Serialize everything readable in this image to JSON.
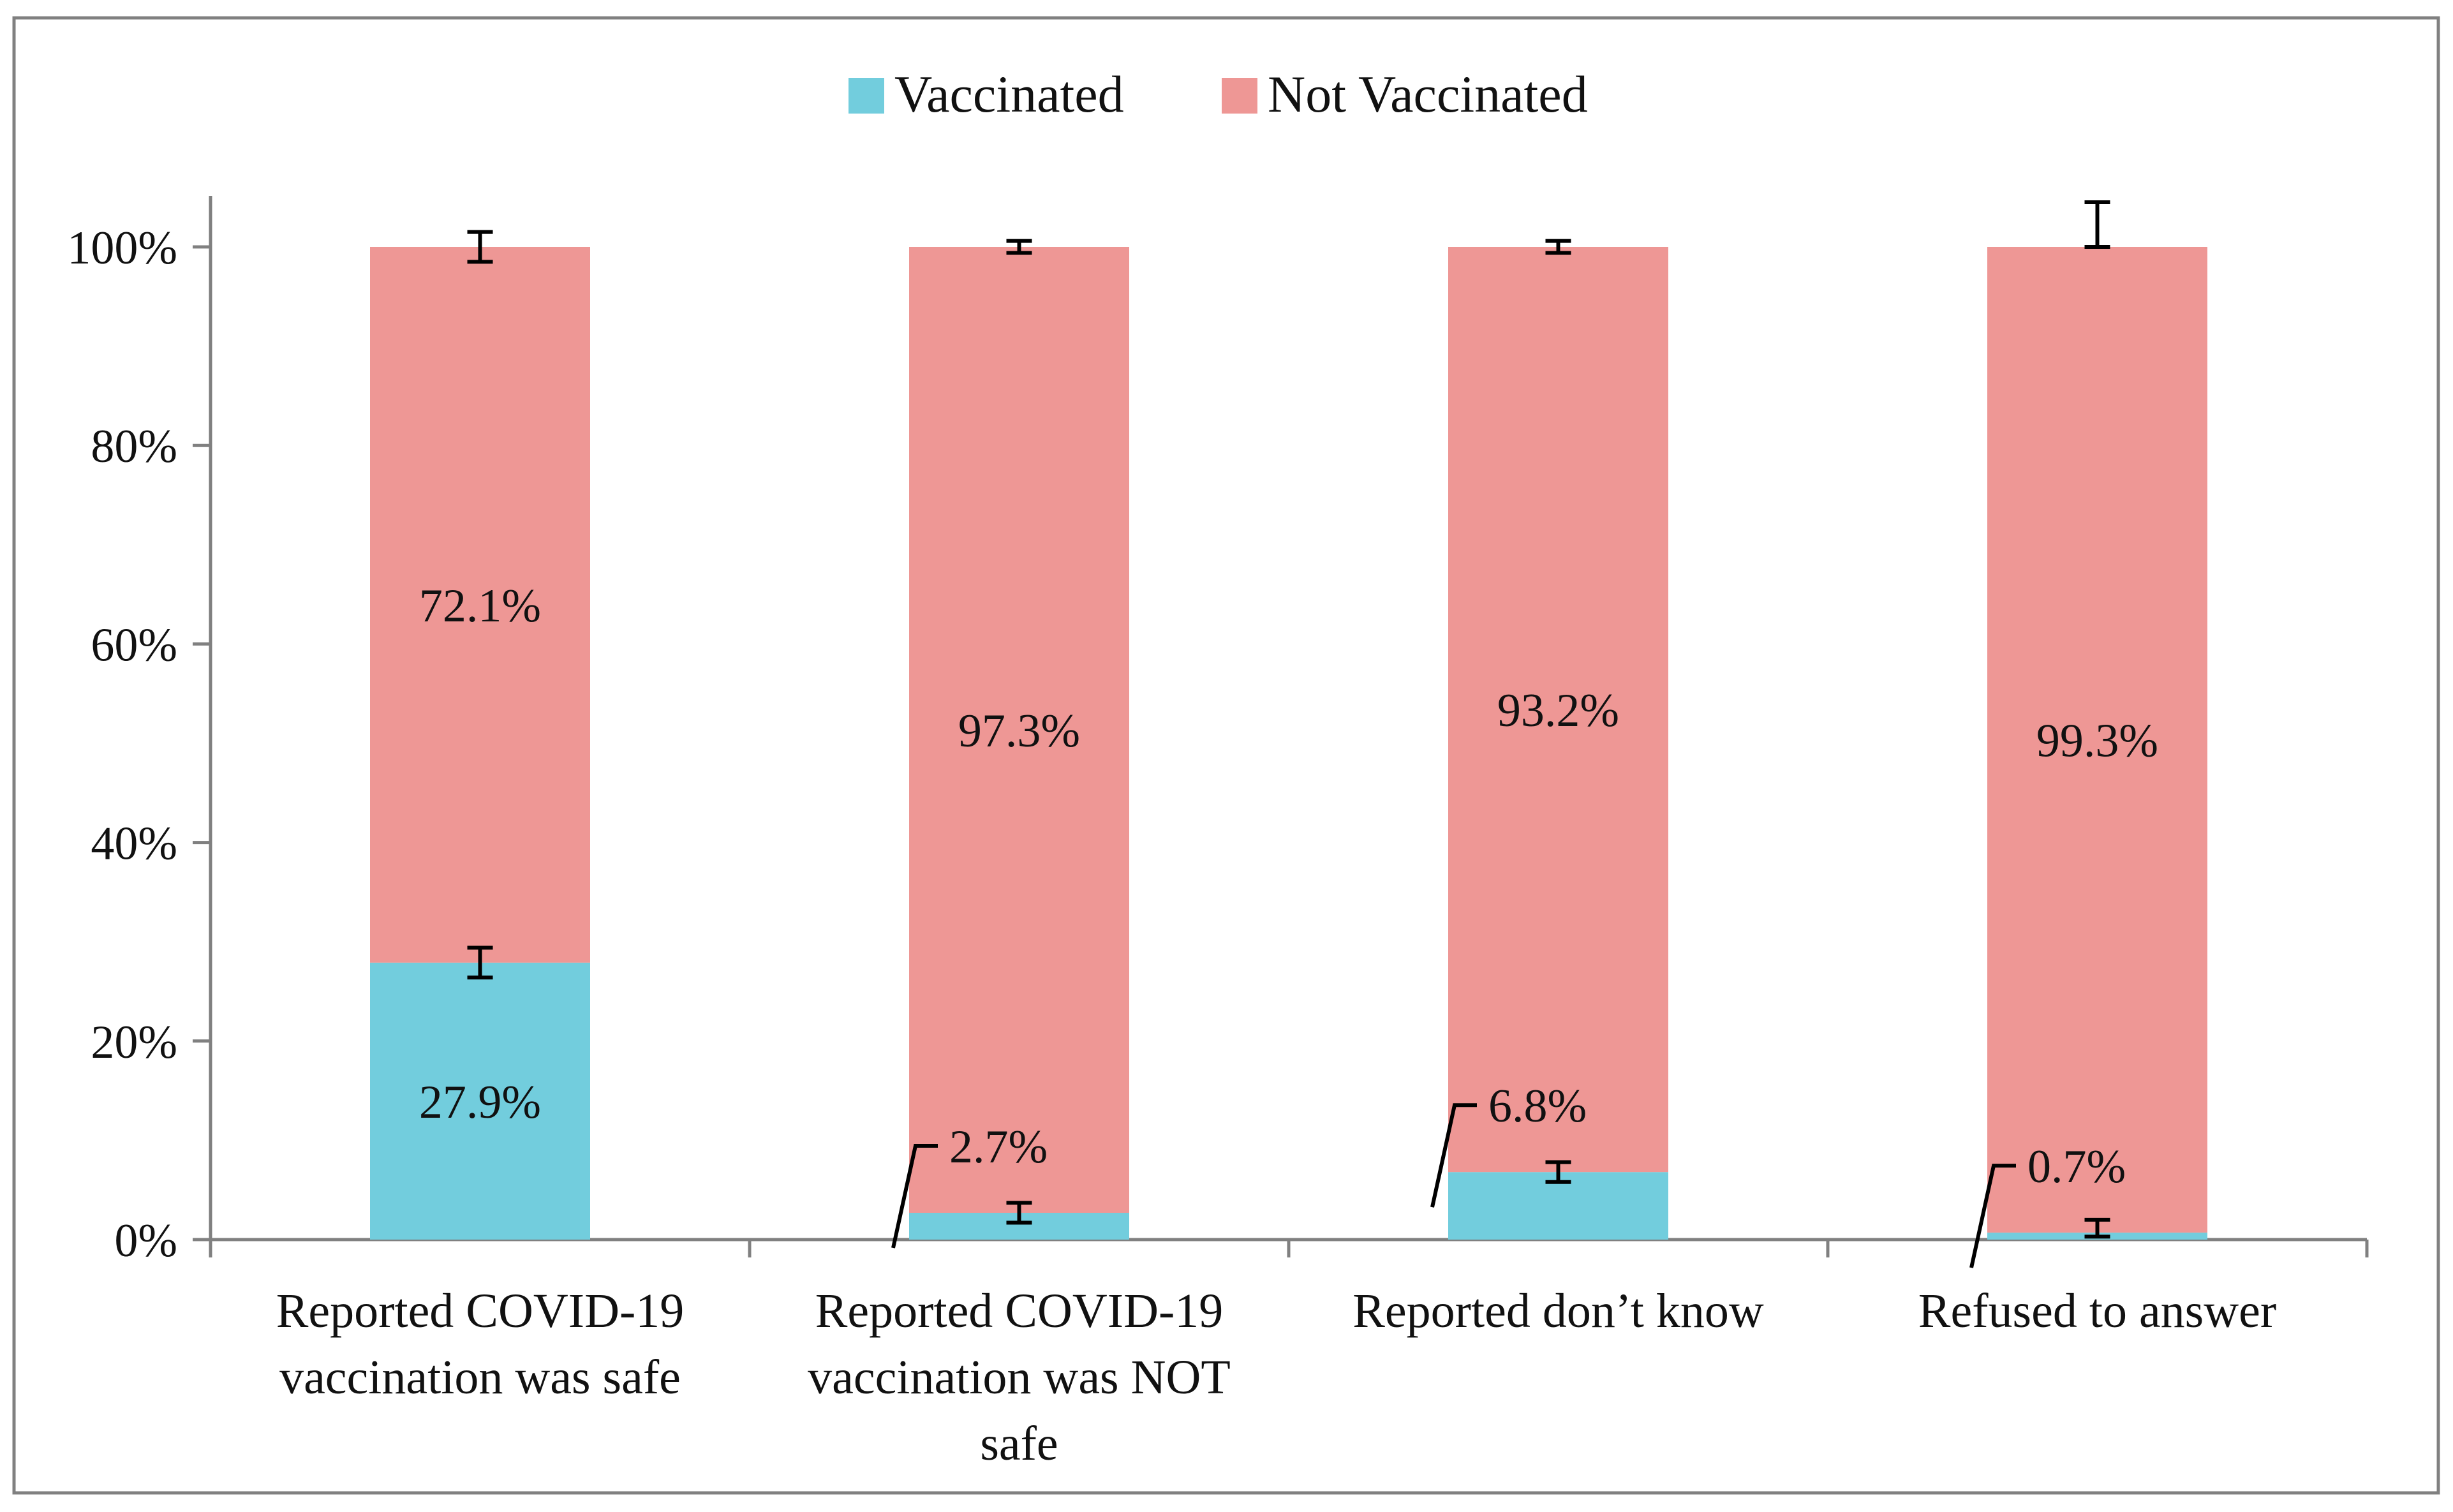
{
  "colors": {
    "vaccinated": "#72CDDD",
    "not_vaccinated": "#EE9795",
    "frame": "#808080",
    "axis": "#808080"
  },
  "chart_data": {
    "type": "bar",
    "stacked": true,
    "title": "",
    "xlabel": "",
    "ylabel": "",
    "ylim": [
      0,
      100
    ],
    "yticks": [
      0,
      20,
      40,
      60,
      80,
      100
    ],
    "ytick_labels": [
      "0%",
      "20%",
      "40%",
      "60%",
      "80%",
      "100%"
    ],
    "legend_position": "top-center",
    "grid": false,
    "categories": [
      [
        "Reported COVID-19",
        "vaccination was safe"
      ],
      [
        "Reported COVID-19",
        "vaccination was NOT",
        "safe"
      ],
      [
        "Reported don’t know"
      ],
      [
        "Refused to answer"
      ]
    ],
    "series": [
      {
        "name": "Vaccinated",
        "color_key": "vaccinated",
        "values": [
          27.9,
          2.7,
          6.8,
          0.7
        ],
        "labels": [
          "27.9%",
          "2.7%",
          "6.8%",
          "0.7%"
        ],
        "error_low": [
          1.5,
          1.0,
          1.0,
          0.4
        ],
        "error_high": [
          1.5,
          1.0,
          1.0,
          1.3
        ]
      },
      {
        "name": "Not Vaccinated",
        "color_key": "not_vaccinated",
        "values": [
          72.1,
          97.3,
          93.2,
          99.3
        ],
        "labels": [
          "72.1%",
          "97.3%",
          "93.2%",
          "99.3%"
        ],
        "error_low": [
          1.5,
          0.6,
          0.6,
          0.0
        ],
        "error_high": [
          1.5,
          0.6,
          0.6,
          4.5
        ]
      }
    ]
  }
}
